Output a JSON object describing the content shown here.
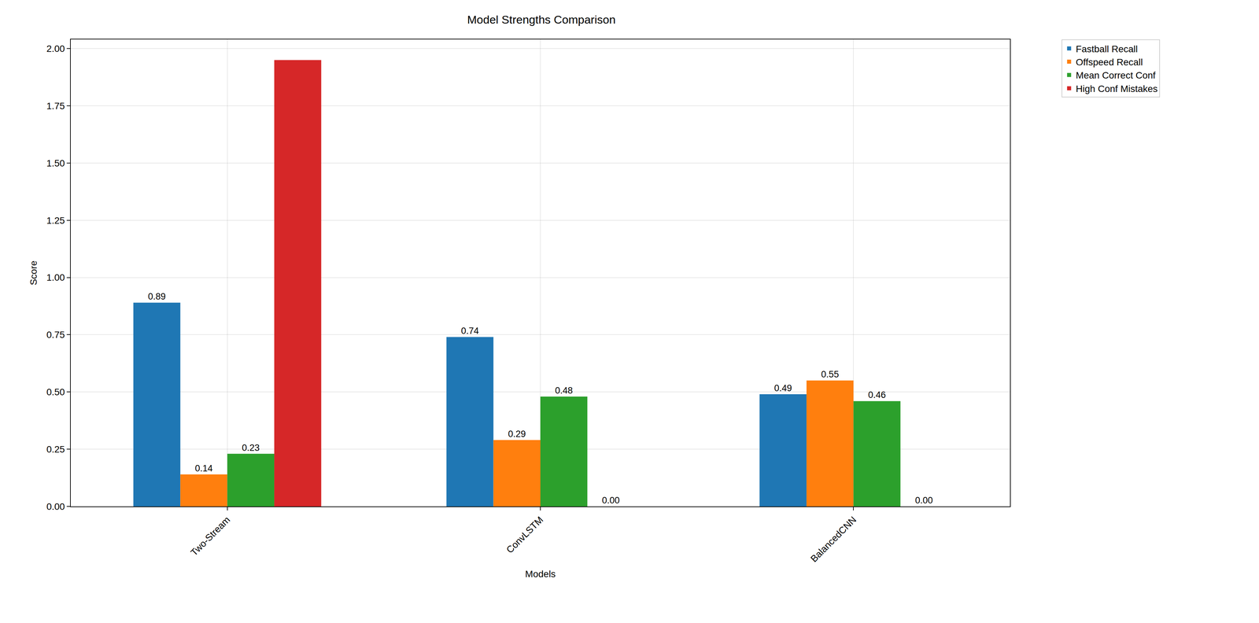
{
  "chart_data": {
    "type": "bar",
    "title": "Model Strengths Comparison",
    "x_label": "Models",
    "y_label": "Score",
    "categories": [
      "Two-Stream",
      "ConvLSTM",
      "BalancedCNN"
    ],
    "series": [
      {
        "name": "Fastball Recall",
        "color": "#1f77b4",
        "values": [
          0.89,
          0.74,
          0.49
        ],
        "value_labels": [
          "0.89",
          "0.74",
          "0.49"
        ]
      },
      {
        "name": "Offspeed Recall",
        "color": "#ff7f0e",
        "values": [
          0.14,
          0.29,
          0.55
        ],
        "value_labels": [
          "0.14",
          "0.29",
          "0.55"
        ]
      },
      {
        "name": "Mean Correct Conf",
        "color": "#2ca02c",
        "values": [
          0.23,
          0.48,
          0.46
        ],
        "value_labels": [
          "0.23",
          "0.48",
          "0.46"
        ]
      },
      {
        "name": "High Conf Mistakes",
        "color": "#d62728",
        "values": [
          1.95,
          0,
          0
        ],
        "value_labels": [
          null,
          "0.00",
          "0.00"
        ]
      }
    ],
    "ylim": [
      0,
      2.04
    ],
    "yticks": [
      {
        "value": 0,
        "label": "0.00"
      },
      {
        "value": 0.25,
        "label": "0.25"
      },
      {
        "value": 0.5,
        "label": "0.50"
      },
      {
        "value": 0.75,
        "label": "0.75"
      },
      {
        "value": 1,
        "label": "1.00"
      },
      {
        "value": 1.25,
        "label": "1.25"
      },
      {
        "value": 1.5,
        "label": "1.50"
      },
      {
        "value": 1.75,
        "label": "1.75"
      },
      {
        "value": 2,
        "label": "2.00"
      }
    ],
    "grid": true,
    "legend": "right",
    "data_labels": true
  }
}
